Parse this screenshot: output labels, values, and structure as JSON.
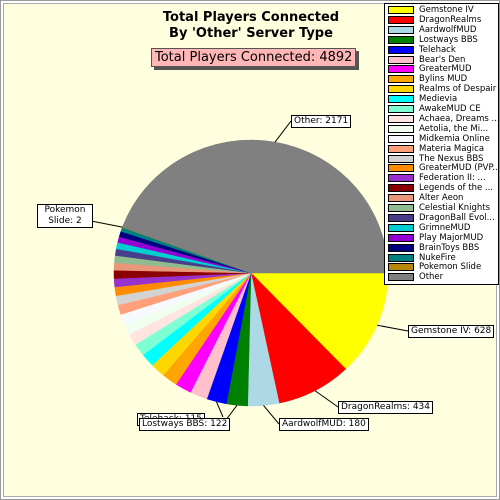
{
  "chart_data": {
    "type": "pie",
    "title": [
      "Total Players Connected",
      "By 'Other' Server Type"
    ],
    "annotation": "Total Players Connected: 4892",
    "categories": [
      "Gemstone IV",
      "DragonRealms",
      "AardwolfMUD",
      "Lostways BBS",
      "Telehack",
      "Bear's Den",
      "GreaterMUD",
      "Bylins MUD",
      "Realms of Despair",
      "Medievia",
      "AwakeMUD CE",
      "Achaea, Dreams ...",
      "Aetolia, the Mi...",
      "Midkemia Online",
      "Materia Magica",
      "The Nexus BBS",
      "GreaterMUD (PVP...",
      "Federation II: ...",
      "Legends of the ...",
      "Alter Aeon",
      "Celestial Knights",
      "DragonBall Evol...",
      "GrimneMUD",
      "Play MajorMUD",
      "BrainToys BBS",
      "NukeFire",
      "Pokemon Slide",
      "Other"
    ],
    "values": [
      628,
      434,
      180,
      122,
      115,
      100,
      95,
      90,
      85,
      80,
      75,
      70,
      65,
      60,
      58,
      55,
      52,
      50,
      48,
      45,
      42,
      40,
      38,
      35,
      32,
      25,
      2,
      2171
    ],
    "value_labels": [
      "Gemstone IV: 628",
      "DragonRealms: 434",
      "AardwolfMUD: 180",
      "Lostways BBS: 122",
      "Telehack: 115",
      null,
      null,
      null,
      null,
      null,
      null,
      null,
      null,
      null,
      null,
      null,
      null,
      null,
      null,
      null,
      null,
      null,
      null,
      null,
      null,
      null,
      "Pokemon Slide: 2",
      "Other: 2171"
    ],
    "colors": [
      "#ffff00",
      "#ff0000",
      "#add8e6",
      "#008000",
      "#0000ff",
      "#ffc0cb",
      "#ff00ff",
      "#ffa500",
      "#ffd700",
      "#00ffff",
      "#7fffd4",
      "#ffe4e1",
      "#f0fff0",
      "#f8f8ff",
      "#ffa07a",
      "#d3d3d3",
      "#ff8c00",
      "#9932cc",
      "#8b0000",
      "#e9967a",
      "#8fbc8f",
      "#483d8b",
      "#00ced1",
      "#9400d3",
      "#000080",
      "#008080",
      "#b8860b",
      "#808080"
    ],
    "legend": "upper right"
  }
}
